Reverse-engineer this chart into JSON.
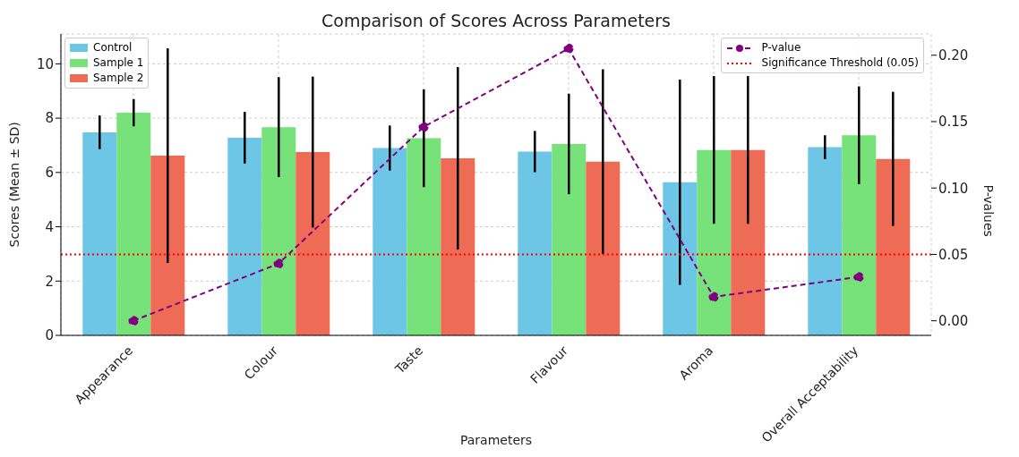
{
  "chart_data": {
    "type": "bar",
    "title": "Comparison of Scores Across Parameters",
    "xlabel": "Parameters",
    "ylabel": "Scores (Mean ± SD)",
    "y2label": "P-values",
    "categories": [
      "Appearance",
      "Colour",
      "Taste",
      "Flavour",
      "Aroma",
      "Overall Acceptability"
    ],
    "series": [
      {
        "name": "Control",
        "color": "#6ec6e6",
        "values": [
          7.48,
          7.28,
          6.9,
          6.77,
          5.64,
          6.93
        ],
        "errors": [
          0.62,
          0.95,
          0.83,
          0.76,
          3.78,
          0.44
        ]
      },
      {
        "name": "Sample 1",
        "color": "#77e27a",
        "values": [
          8.2,
          7.67,
          7.26,
          7.05,
          6.83,
          7.37
        ],
        "errors": [
          0.5,
          1.84,
          1.8,
          1.85,
          2.72,
          1.8
        ]
      },
      {
        "name": "Sample 2",
        "color": "#ee6b56",
        "values": [
          6.62,
          6.75,
          6.52,
          6.4,
          6.83,
          6.5
        ],
        "errors": [
          3.95,
          2.78,
          3.36,
          3.4,
          2.72,
          2.47
        ]
      },
      {
        "name": "P-value",
        "type": "line",
        "axis": "y2",
        "color": "#800080",
        "values": [
          0.0,
          0.043,
          0.146,
          0.205,
          0.018,
          0.033
        ],
        "line_style": "dashed",
        "marker": "circle"
      }
    ],
    "ylim": [
      0,
      11.1
    ],
    "yticks": [
      0,
      2,
      4,
      6,
      8,
      10
    ],
    "y2lim": [
      -0.011,
      0.216
    ],
    "y2ticks": [
      {
        "value": 0,
        "label": "0.00"
      },
      {
        "value": 0.05,
        "label": "0.05"
      },
      {
        "value": 0.1,
        "label": "0.10"
      },
      {
        "value": 0.15,
        "label": "0.15"
      },
      {
        "value": 0.2,
        "label": "0.20"
      }
    ],
    "ref_lines": [
      {
        "axis": "y2",
        "value": 0.05,
        "label": "Significance Threshold (0.05)",
        "color": "#ff0000",
        "line_style": "dotted"
      }
    ],
    "grid": true,
    "legend": "top left"
  }
}
